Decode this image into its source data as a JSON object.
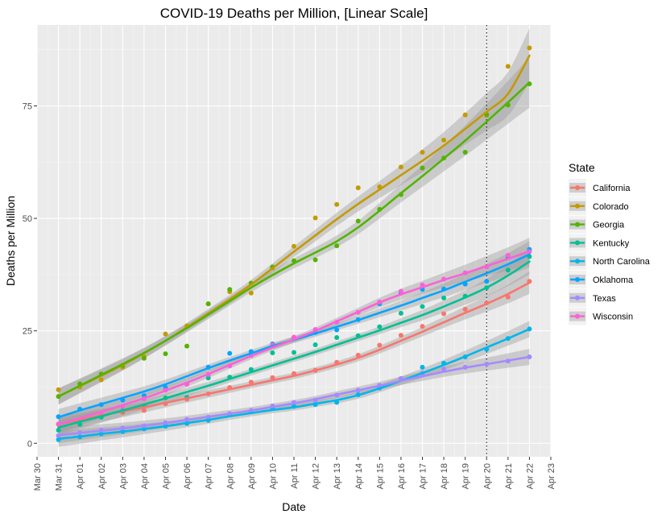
{
  "chart_data": {
    "type": "scatter",
    "title": "COVID-19 Deaths per Million, [Linear Scale]",
    "xlabel": "Date",
    "ylabel": "Deaths per Million",
    "x_ticks": [
      "Mar 30",
      "Mar 31",
      "Apr 01",
      "Apr 02",
      "Apr 03",
      "Apr 04",
      "Apr 05",
      "Apr 06",
      "Apr 07",
      "Apr 08",
      "Apr 09",
      "Apr 10",
      "Apr 11",
      "Apr 12",
      "Apr 13",
      "Apr 14",
      "Apr 15",
      "Apr 16",
      "Apr 17",
      "Apr 18",
      "Apr 19",
      "Apr 20",
      "Apr 21",
      "Apr 22",
      "Apr 23"
    ],
    "xlim": [
      "Mar 30",
      "Apr 23"
    ],
    "y_ticks": [
      0,
      25,
      50,
      75
    ],
    "ylim": [
      -3,
      93
    ],
    "grid": true,
    "trend": "smoothed fit with confidence band",
    "reference_line": {
      "x": "Apr 20",
      "style": "dotted"
    },
    "legend": {
      "title": "State",
      "placement": "right"
    },
    "series": [
      {
        "name": "California",
        "color": "#F8766D",
        "x": [
          "Mar 31",
          "Apr 01",
          "Apr 02",
          "Apr 03",
          "Apr 04",
          "Apr 05",
          "Apr 06",
          "Apr 07",
          "Apr 08",
          "Apr 09",
          "Apr 10",
          "Apr 11",
          "Apr 12",
          "Apr 13",
          "Apr 14",
          "Apr 15",
          "Apr 16",
          "Apr 17",
          "Apr 18",
          "Apr 19",
          "Apr 20",
          "Apr 21",
          "Apr 22"
        ],
        "values": [
          4.2,
          5.0,
          6.1,
          6.8,
          7.3,
          8.8,
          9.8,
          11.0,
          12.4,
          13.6,
          14.6,
          15.5,
          16.2,
          18.0,
          19.6,
          21.8,
          24.0,
          26.0,
          28.8,
          29.8,
          31.2,
          32.5,
          36.0
        ],
        "fit": [
          4.2,
          5.2,
          6.2,
          7.1,
          8.0,
          9.0,
          10.0,
          11.0,
          12.0,
          13.0,
          14.0,
          15.0,
          16.2,
          17.5,
          19.0,
          20.8,
          22.8,
          24.8,
          26.9,
          29.0,
          31.0,
          33.2,
          35.7
        ]
      },
      {
        "name": "Colorado",
        "color": "#C49A00",
        "x": [
          "Mar 31",
          "Apr 01",
          "Apr 02",
          "Apr 03",
          "Apr 04",
          "Apr 05",
          "Apr 06",
          "Apr 07",
          "Apr 08",
          "Apr 09",
          "Apr 10",
          "Apr 11",
          "Apr 12",
          "Apr 13",
          "Apr 14",
          "Apr 15",
          "Apr 16",
          "Apr 17",
          "Apr 18",
          "Apr 19",
          "Apr 20",
          "Apr 21",
          "Apr 22"
        ],
        "values": [
          11.9,
          12.5,
          14.1,
          16.9,
          19.2,
          24.3,
          26.1,
          31.0,
          33.7,
          33.4,
          39.0,
          43.8,
          50.1,
          53.1,
          56.8,
          57.0,
          61.4,
          64.7,
          67.4,
          73.0,
          72.9,
          83.8,
          87.9
        ],
        "fit": [
          10.4,
          12.7,
          15.0,
          17.4,
          20.0,
          22.8,
          25.8,
          28.9,
          32.0,
          35.3,
          38.9,
          42.6,
          46.2,
          49.8,
          53.2,
          56.4,
          59.6,
          62.8,
          66.2,
          69.9,
          73.7,
          77.7,
          86.2
        ]
      },
      {
        "name": "Georgia",
        "color": "#53B400",
        "x": [
          "Mar 31",
          "Apr 01",
          "Apr 02",
          "Apr 03",
          "Apr 04",
          "Apr 05",
          "Apr 06",
          "Apr 07",
          "Apr 08",
          "Apr 09",
          "Apr 10",
          "Apr 11",
          "Apr 12",
          "Apr 13",
          "Apr 14",
          "Apr 15",
          "Apr 16",
          "Apr 17",
          "Apr 18",
          "Apr 19",
          "Apr 20",
          "Apr 21",
          "Apr 22"
        ],
        "values": [
          10.4,
          13.2,
          15.4,
          17.3,
          18.9,
          19.9,
          21.6,
          31.0,
          34.2,
          35.6,
          39.2,
          40.6,
          40.8,
          43.9,
          49.4,
          52.0,
          55.3,
          61.2,
          63.4,
          64.7,
          73.1,
          75.2,
          79.9
        ],
        "fit": [
          10.4,
          12.8,
          15.2,
          17.6,
          20.1,
          22.8,
          25.6,
          28.6,
          31.6,
          34.6,
          37.4,
          40.0,
          42.4,
          44.9,
          48.0,
          51.7,
          55.6,
          59.4,
          63.3,
          67.3,
          71.5,
          75.8,
          80.2
        ]
      },
      {
        "name": "Kentucky",
        "color": "#00C094",
        "x": [
          "Mar 31",
          "Apr 01",
          "Apr 02",
          "Apr 03",
          "Apr 04",
          "Apr 05",
          "Apr 06",
          "Apr 07",
          "Apr 08",
          "Apr 09",
          "Apr 10",
          "Apr 11",
          "Apr 12",
          "Apr 13",
          "Apr 14",
          "Apr 15",
          "Apr 16",
          "Apr 17",
          "Apr 18",
          "Apr 19",
          "Apr 20",
          "Apr 21",
          "Apr 22"
        ],
        "values": [
          2.9,
          4.2,
          5.8,
          7.2,
          8.3,
          10.1,
          10.2,
          14.5,
          14.7,
          16.4,
          20.1,
          20.2,
          21.9,
          23.5,
          23.9,
          25.9,
          28.9,
          30.4,
          32.3,
          32.7,
          34.6,
          38.5,
          41.5
        ],
        "fit": [
          3.5,
          4.8,
          6.0,
          7.3,
          8.6,
          10.0,
          11.4,
          12.8,
          14.3,
          15.8,
          17.3,
          18.8,
          20.3,
          21.9,
          23.5,
          25.1,
          26.8,
          28.5,
          30.4,
          32.4,
          34.6,
          37.3,
          40.4
        ]
      },
      {
        "name": "North Carolina",
        "color": "#00B6EB",
        "x": [
          "Mar 31",
          "Apr 01",
          "Apr 02",
          "Apr 03",
          "Apr 04",
          "Apr 05",
          "Apr 06",
          "Apr 07",
          "Apr 08",
          "Apr 09",
          "Apr 10",
          "Apr 11",
          "Apr 12",
          "Apr 13",
          "Apr 14",
          "Apr 15",
          "Apr 16",
          "Apr 17",
          "Apr 18",
          "Apr 19",
          "Apr 20",
          "Apr 21",
          "Apr 22"
        ],
        "values": [
          0.8,
          1.4,
          2.1,
          2.6,
          3.2,
          3.8,
          4.4,
          5.1,
          6.4,
          7.0,
          7.9,
          8.2,
          8.6,
          9.1,
          10.8,
          12.3,
          14.4,
          16.9,
          17.8,
          19.2,
          20.9,
          23.3,
          25.4
        ],
        "fit": [
          1.0,
          1.5,
          2.1,
          2.6,
          3.2,
          3.8,
          4.5,
          5.2,
          6.0,
          6.7,
          7.4,
          8.0,
          8.8,
          9.6,
          10.7,
          12.2,
          13.9,
          15.6,
          17.4,
          19.3,
          21.3,
          23.3,
          25.4
        ]
      },
      {
        "name": "Oklahoma",
        "color": "#06A4FF",
        "x": [
          "Mar 31",
          "Apr 01",
          "Apr 02",
          "Apr 03",
          "Apr 04",
          "Apr 05",
          "Apr 06",
          "Apr 07",
          "Apr 08",
          "Apr 09",
          "Apr 10",
          "Apr 11",
          "Apr 12",
          "Apr 13",
          "Apr 14",
          "Apr 15",
          "Apr 16",
          "Apr 17",
          "Apr 18",
          "Apr 19",
          "Apr 20",
          "Apr 21",
          "Apr 22"
        ],
        "values": [
          5.9,
          7.6,
          8.6,
          9.6,
          10.6,
          12.4,
          13.2,
          16.9,
          20.0,
          20.4,
          22.1,
          23.4,
          24.6,
          25.2,
          27.5,
          31.0,
          33.4,
          34.2,
          34.3,
          35.4,
          36.0,
          41.3,
          43.1
        ],
        "fit": [
          5.8,
          7.3,
          8.7,
          10.1,
          11.5,
          13.1,
          14.9,
          16.7,
          18.4,
          20.0,
          21.6,
          23.0,
          24.4,
          25.9,
          27.4,
          29.0,
          30.6,
          32.3,
          34.0,
          35.9,
          37.8,
          39.8,
          42.0
        ]
      },
      {
        "name": "Texas",
        "color": "#A58AFF",
        "x": [
          "Mar 31",
          "Apr 01",
          "Apr 02",
          "Apr 03",
          "Apr 04",
          "Apr 05",
          "Apr 06",
          "Apr 07",
          "Apr 08",
          "Apr 09",
          "Apr 10",
          "Apr 11",
          "Apr 12",
          "Apr 13",
          "Apr 14",
          "Apr 15",
          "Apr 16",
          "Apr 17",
          "Apr 18",
          "Apr 19",
          "Apr 20",
          "Apr 21",
          "Apr 22"
        ],
        "values": [
          1.7,
          2.4,
          2.9,
          3.4,
          3.9,
          4.6,
          5.3,
          5.8,
          6.6,
          7.3,
          8.3,
          9.1,
          9.6,
          10.7,
          11.8,
          12.9,
          14.4,
          15.6,
          16.5,
          16.9,
          17.6,
          18.3,
          19.2
        ],
        "fit": [
          1.8,
          2.3,
          2.8,
          3.3,
          3.9,
          4.5,
          5.2,
          5.9,
          6.6,
          7.3,
          8.1,
          8.9,
          9.8,
          10.8,
          11.8,
          12.8,
          13.9,
          14.9,
          15.9,
          16.8,
          17.6,
          18.4,
          19.2
        ]
      },
      {
        "name": "Wisconsin",
        "color": "#FB61D7",
        "x": [
          "Mar 31",
          "Apr 01",
          "Apr 02",
          "Apr 03",
          "Apr 04",
          "Apr 05",
          "Apr 06",
          "Apr 07",
          "Apr 08",
          "Apr 09",
          "Apr 10",
          "Apr 11",
          "Apr 12",
          "Apr 13",
          "Apr 14",
          "Apr 15",
          "Apr 16",
          "Apr 17",
          "Apr 18",
          "Apr 19",
          "Apr 20",
          "Apr 21",
          "Apr 22"
        ],
        "values": [
          4.3,
          5.3,
          6.5,
          8.2,
          9.9,
          11.8,
          13.1,
          15.3,
          17.2,
          19.5,
          21.9,
          23.6,
          25.3,
          26.9,
          29.1,
          31.4,
          33.8,
          35.2,
          36.5,
          37.9,
          39.2,
          41.8,
          42.6
        ],
        "fit": [
          4.2,
          5.6,
          7.0,
          8.5,
          10.0,
          11.7,
          13.5,
          15.4,
          17.4,
          19.4,
          21.3,
          23.1,
          25.0,
          27.1,
          29.2,
          31.3,
          33.1,
          34.7,
          36.3,
          37.8,
          39.4,
          41.0,
          42.7
        ]
      }
    ]
  }
}
